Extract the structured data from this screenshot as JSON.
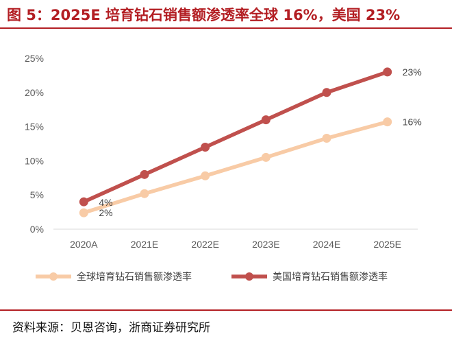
{
  "header": {
    "title": "图 5：2025E 培育钻石销售额渗透率全球 16%，美国 23%"
  },
  "footer": {
    "source": "资料来源：贝恩咨询，浙商证券研究所"
  },
  "colors": {
    "accent": "#b31e23",
    "global": "#f8cba6",
    "us": "#c0504d",
    "axis": "#d9d9d9"
  },
  "chart_data": {
    "type": "line",
    "categories": [
      "2020A",
      "2021E",
      "2022E",
      "2023E",
      "2024E",
      "2025E"
    ],
    "yticks": [
      "0%",
      "5%",
      "10%",
      "15%",
      "20%",
      "25%"
    ],
    "ylim": [
      0,
      25
    ],
    "grid": false,
    "legend": "bottom",
    "series": [
      {
        "name": "全球培育钻石销售额渗透率",
        "values": [
          2.4,
          5.2,
          7.8,
          10.5,
          13.3,
          15.7
        ],
        "labels": [
          "2%",
          "",
          "",
          "",
          "",
          "16%"
        ]
      },
      {
        "name": "美国培育钻石销售额渗透率",
        "values": [
          4.0,
          8.0,
          12.0,
          16.0,
          20.0,
          23.0
        ],
        "labels": [
          "4%",
          "",
          "",
          "",
          "",
          "23%"
        ]
      }
    ]
  }
}
